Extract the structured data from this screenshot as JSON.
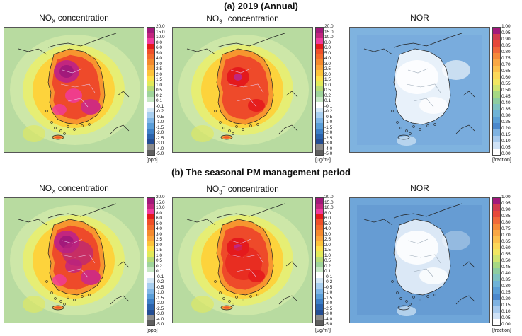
{
  "titles": {
    "annual": "(a) 2019 (Annual)",
    "seasonal": "(b) The seasonal PM management period"
  },
  "panel_titles": {
    "nox_prefix": "NO",
    "nox_sub": "X",
    "nox_suffix": " concentration",
    "no3_prefix": "NO",
    "no3_sub": "3",
    "no3_sup": "−",
    "no3_suffix": " concentration",
    "nor": "NOR"
  },
  "scales": {
    "concentration": {
      "ticks": [
        "20.0",
        "15.0",
        "10.0",
        "8.0",
        "6.0",
        "5.0",
        "4.0",
        "3.0",
        "2.5",
        "2.0",
        "1.5",
        "1.0",
        "0.5",
        "0.2",
        "0.1",
        "-0.1",
        "-0.2",
        "-0.5",
        "-1.0",
        "-1.5",
        "-2.0",
        "-2.5",
        "-3.0",
        "-4.0",
        "-5.0"
      ],
      "colors": [
        "#a2197b",
        "#c2267f",
        "#ef3b9c",
        "#e41a1c",
        "#f0502a",
        "#f36b2c",
        "#f58a2e",
        "#fba53a",
        "#fdc33b",
        "#fde14a",
        "#e2ea5a",
        "#b8dd77",
        "#9fd49a",
        "#c6e8c3",
        "#ffffff",
        "#d5e8f6",
        "#a8cff0",
        "#7fb6e7",
        "#5a9ed9",
        "#3d7fc7",
        "#2b63ad",
        "#244e95",
        "#8a8a8a",
        "#5f5f5f"
      ]
    },
    "nor": {
      "ticks": [
        "1.00",
        "0.95",
        "0.90",
        "0.85",
        "0.80",
        "0.75",
        "0.70",
        "0.65",
        "0.60",
        "0.55",
        "0.50",
        "0.45",
        "0.40",
        "0.35",
        "0.30",
        "0.25",
        "0.20",
        "0.15",
        "0.10",
        "0.05",
        "0.00"
      ],
      "colors": [
        "#a2197b",
        "#d23a4f",
        "#e6493a",
        "#f0683a",
        "#f58a3a",
        "#f8a743",
        "#fbc04d",
        "#fbd85a",
        "#f1e661",
        "#cfe470",
        "#a6d883",
        "#8dcda0",
        "#7ec2c0",
        "#6fb3d7",
        "#5b9fd6",
        "#4b88cc",
        "#7fb2e0",
        "#a9cbed",
        "#cfe2f6",
        "#ffffff"
      ]
    }
  },
  "units": {
    "ppb": "[ppb]",
    "ugm3": "[μg/m³]",
    "fraction": "[fraction]"
  }
}
